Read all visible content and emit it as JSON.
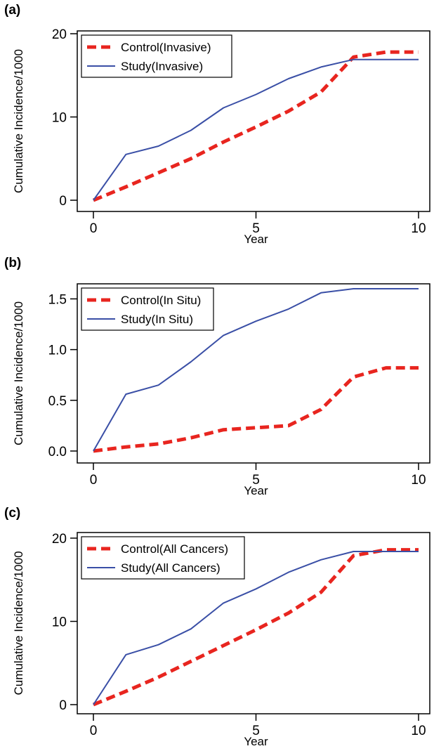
{
  "colors": {
    "control": "#e8251f",
    "study": "#3a4fa6"
  },
  "chart_data": [
    {
      "type": "line",
      "panel_label": "(a)",
      "xlabel": "Year",
      "ylabel": "Cumulative Incidence/1000",
      "xlim": [
        0,
        10
      ],
      "ylim": [
        0,
        20
      ],
      "x_ticks": [
        0,
        5,
        10
      ],
      "y_ticks": [
        0,
        10,
        20
      ],
      "y_tick_labels": [
        "0",
        "10",
        "20"
      ],
      "legend_position": "top-left",
      "x": [
        0,
        1,
        2,
        3,
        4,
        5,
        6,
        7,
        8,
        9,
        10
      ],
      "series": [
        {
          "name": "Control(Invasive)",
          "style": "dashed",
          "values": [
            0,
            1.6,
            3.3,
            5.0,
            7.0,
            8.8,
            10.7,
            13.0,
            17.2,
            17.8,
            17.8
          ]
        },
        {
          "name": "Study(Invasive)",
          "style": "solid",
          "values": [
            0,
            5.5,
            6.5,
            8.4,
            11.1,
            12.7,
            14.6,
            16.0,
            16.9,
            16.9,
            16.9
          ]
        }
      ]
    },
    {
      "type": "line",
      "panel_label": "(b)",
      "xlabel": "Year",
      "ylabel": "Cumulative Incidence/1000",
      "xlim": [
        0,
        10
      ],
      "ylim": [
        0,
        1.6
      ],
      "x_ticks": [
        0,
        5,
        10
      ],
      "y_ticks": [
        0,
        0.5,
        1.0,
        1.5
      ],
      "y_tick_labels": [
        "0.0",
        "0.5",
        "1.0",
        "1.5"
      ],
      "legend_position": "top-left",
      "x": [
        0,
        1,
        2,
        3,
        4,
        5,
        6,
        7,
        8,
        9,
        10
      ],
      "series": [
        {
          "name": "Control(In Situ)",
          "style": "dashed",
          "values": [
            0,
            0.04,
            0.07,
            0.13,
            0.21,
            0.23,
            0.25,
            0.41,
            0.73,
            0.82,
            0.82
          ]
        },
        {
          "name": "Study(In Situ)",
          "style": "solid",
          "values": [
            0,
            0.56,
            0.65,
            0.88,
            1.14,
            1.28,
            1.4,
            1.56,
            1.6,
            1.6,
            1.6
          ]
        }
      ]
    },
    {
      "type": "line",
      "panel_label": "(c)",
      "xlabel": "Year",
      "ylabel": "Cumulative Incidence/1000",
      "xlim": [
        0,
        10
      ],
      "ylim": [
        0,
        20
      ],
      "x_ticks": [
        0,
        5,
        10
      ],
      "y_ticks": [
        0,
        10,
        20
      ],
      "y_tick_labels": [
        "0",
        "10",
        "20"
      ],
      "legend_position": "top-left",
      "x": [
        0,
        1,
        2,
        3,
        4,
        5,
        6,
        7,
        8,
        9,
        10
      ],
      "series": [
        {
          "name": "Control(All Cancers)",
          "style": "dashed",
          "values": [
            0,
            1.6,
            3.3,
            5.2,
            7.1,
            9.0,
            11.0,
            13.5,
            17.9,
            18.6,
            18.6
          ]
        },
        {
          "name": "Study(All Cancers)",
          "style": "solid",
          "values": [
            0,
            6.0,
            7.2,
            9.1,
            12.2,
            13.9,
            15.9,
            17.4,
            18.4,
            18.4,
            18.4
          ]
        }
      ]
    }
  ]
}
